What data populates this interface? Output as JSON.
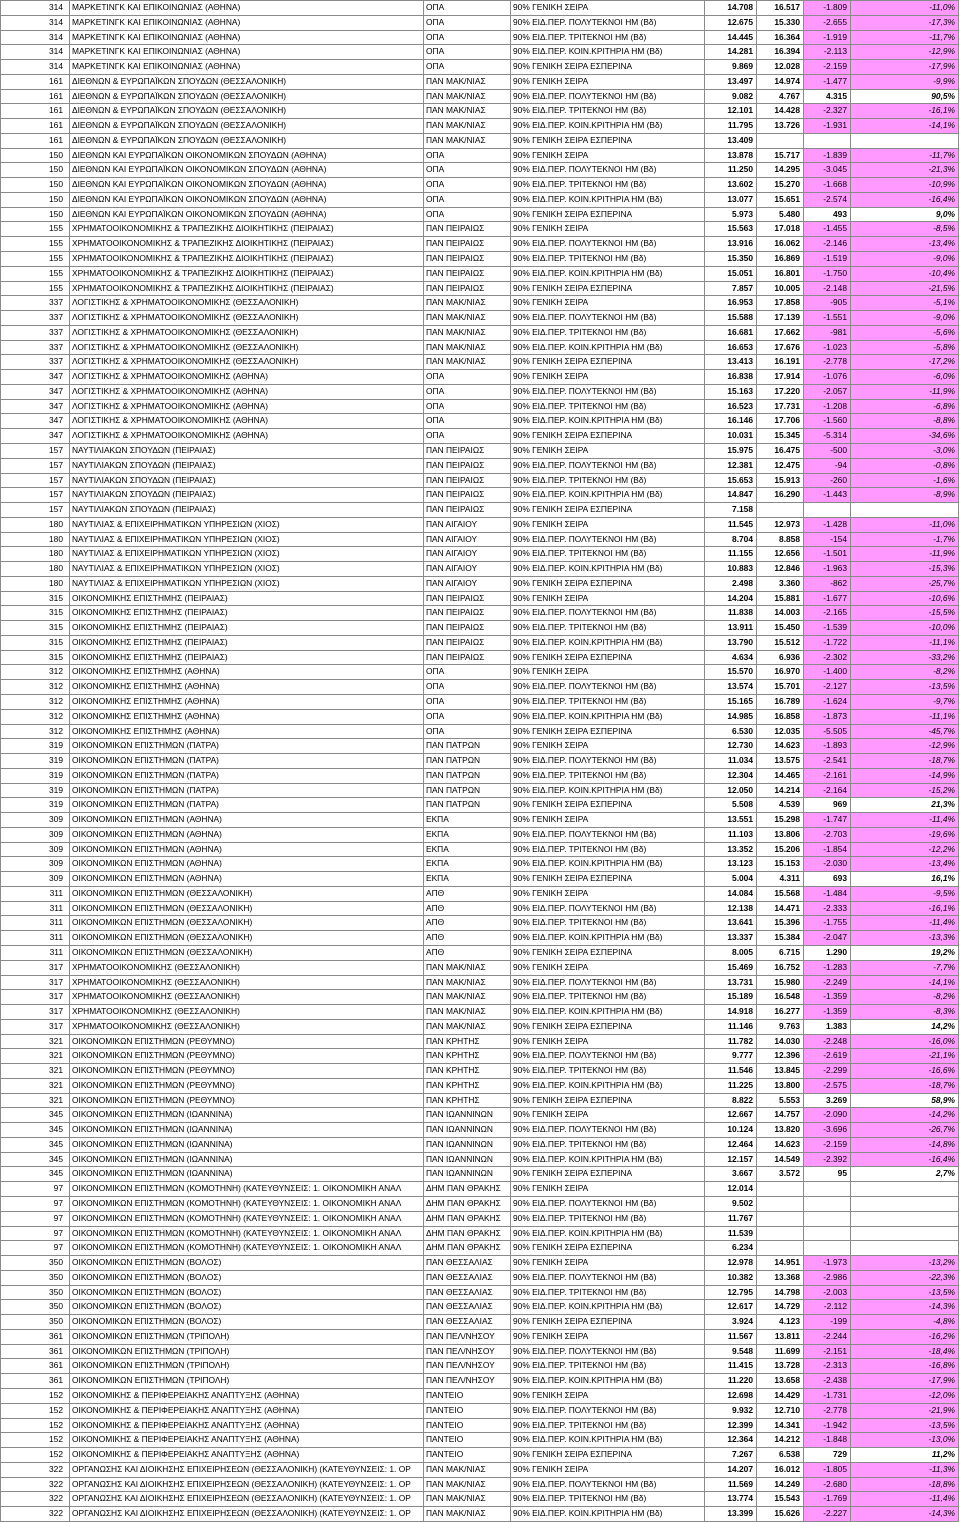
{
  "rows": [
    [
      "314",
      "ΜΑΡΚΕΤΙΝΓΚ ΚΑΙ ΕΠΙΚΟΙΝΩΝΙΑΣ (ΑΘΗΝΑ)",
      "ΟΠΑ",
      "90% ΓΕΝΙΚΗ ΣΕΙΡΑ",
      "14.708",
      "16.517",
      "-1.809",
      "-11,0%"
    ],
    [
      "314",
      "ΜΑΡΚΕΤΙΝΓΚ ΚΑΙ ΕΠΙΚΟΙΝΩΝΙΑΣ (ΑΘΗΝΑ)",
      "ΟΠΑ",
      "90% ΕΙΔ.ΠΕΡ. ΠΟΛΥΤΕΚΝΟΙ ΗΜ (Βδ)",
      "12.675",
      "15.330",
      "-2.655",
      "-17,3%"
    ],
    [
      "314",
      "ΜΑΡΚΕΤΙΝΓΚ ΚΑΙ ΕΠΙΚΟΙΝΩΝΙΑΣ (ΑΘΗΝΑ)",
      "ΟΠΑ",
      "90% ΕΙΔ.ΠΕΡ. ΤΡΙΤΕΚΝΟΙ ΗΜ (Βδ)",
      "14.445",
      "16.364",
      "-1.919",
      "-11,7%"
    ],
    [
      "314",
      "ΜΑΡΚΕΤΙΝΓΚ ΚΑΙ ΕΠΙΚΟΙΝΩΝΙΑΣ (ΑΘΗΝΑ)",
      "ΟΠΑ",
      "90% ΕΙΔ.ΠΕΡ. ΚΟΙΝ.ΚΡΙΤΗΡΙΑ ΗΜ (Βδ)",
      "14.281",
      "16.394",
      "-2.113",
      "-12,9%"
    ],
    [
      "314",
      "ΜΑΡΚΕΤΙΝΓΚ ΚΑΙ ΕΠΙΚΟΙΝΩΝΙΑΣ (ΑΘΗΝΑ)",
      "ΟΠΑ",
      "90% ΓΕΝΙΚΗ ΣΕΙΡΑ ΕΣΠΕΡΙΝΑ",
      "9.869",
      "12.028",
      "-2.159",
      "-17,9%"
    ],
    [
      "161",
      "ΔΙΕΘΝΩΝ & ΕΥΡΩΠΑΪΚΩΝ ΣΠΟΥΔΩΝ (ΘΕΣΣΑΛΟΝΙΚΗ)",
      "ΠΑΝ ΜΑΚ/ΝΙΑΣ",
      "90% ΓΕΝΙΚΗ ΣΕΙΡΑ",
      "13.497",
      "14.974",
      "-1.477",
      "-9,9%"
    ],
    [
      "161",
      "ΔΙΕΘΝΩΝ & ΕΥΡΩΠΑΪΚΩΝ ΣΠΟΥΔΩΝ (ΘΕΣΣΑΛΟΝΙΚΗ)",
      "ΠΑΝ ΜΑΚ/ΝΙΑΣ",
      "90% ΕΙΔ.ΠΕΡ. ΠΟΛΥΤΕΚΝΟΙ ΗΜ (Βδ)",
      "9.082",
      "4.767",
      "4.315",
      "90,5%"
    ],
    [
      "161",
      "ΔΙΕΘΝΩΝ & ΕΥΡΩΠΑΪΚΩΝ ΣΠΟΥΔΩΝ (ΘΕΣΣΑΛΟΝΙΚΗ)",
      "ΠΑΝ ΜΑΚ/ΝΙΑΣ",
      "90% ΕΙΔ.ΠΕΡ. ΤΡΙΤΕΚΝΟΙ ΗΜ (Βδ)",
      "12.101",
      "14.428",
      "-2.327",
      "-16,1%"
    ],
    [
      "161",
      "ΔΙΕΘΝΩΝ & ΕΥΡΩΠΑΪΚΩΝ ΣΠΟΥΔΩΝ (ΘΕΣΣΑΛΟΝΙΚΗ)",
      "ΠΑΝ ΜΑΚ/ΝΙΑΣ",
      "90% ΕΙΔ.ΠΕΡ. ΚΟΙΝ.ΚΡΙΤΗΡΙΑ ΗΜ (Βδ)",
      "11.795",
      "13.726",
      "-1.931",
      "-14,1%"
    ],
    [
      "161",
      "ΔΙΕΘΝΩΝ & ΕΥΡΩΠΑΪΚΩΝ ΣΠΟΥΔΩΝ (ΘΕΣΣΑΛΟΝΙΚΗ)",
      "ΠΑΝ ΜΑΚ/ΝΙΑΣ",
      "90% ΓΕΝΙΚΗ ΣΕΙΡΑ ΕΣΠΕΡΙΝΑ",
      "13.409",
      "",
      "",
      ""
    ],
    [
      "150",
      "ΔΙΕΘΝΩΝ ΚΑΙ ΕΥΡΩΠΑΪΚΩΝ ΟΙΚΟΝΟΜΙΚΩΝ ΣΠΟΥΔΩΝ (ΑΘΗΝΑ)",
      "ΟΠΑ",
      "90% ΓΕΝΙΚΗ ΣΕΙΡΑ",
      "13.878",
      "15.717",
      "-1.839",
      "-11,7%"
    ],
    [
      "150",
      "ΔΙΕΘΝΩΝ ΚΑΙ ΕΥΡΩΠΑΪΚΩΝ ΟΙΚΟΝΟΜΙΚΩΝ ΣΠΟΥΔΩΝ (ΑΘΗΝΑ)",
      "ΟΠΑ",
      "90% ΕΙΔ.ΠΕΡ. ΠΟΛΥΤΕΚΝΟΙ ΗΜ (Βδ)",
      "11.250",
      "14.295",
      "-3.045",
      "-21,3%"
    ],
    [
      "150",
      "ΔΙΕΘΝΩΝ ΚΑΙ ΕΥΡΩΠΑΪΚΩΝ ΟΙΚΟΝΟΜΙΚΩΝ ΣΠΟΥΔΩΝ (ΑΘΗΝΑ)",
      "ΟΠΑ",
      "90% ΕΙΔ.ΠΕΡ. ΤΡΙΤΕΚΝΟΙ ΗΜ (Βδ)",
      "13.602",
      "15.270",
      "-1.668",
      "-10,9%"
    ],
    [
      "150",
      "ΔΙΕΘΝΩΝ ΚΑΙ ΕΥΡΩΠΑΪΚΩΝ ΟΙΚΟΝΟΜΙΚΩΝ ΣΠΟΥΔΩΝ (ΑΘΗΝΑ)",
      "ΟΠΑ",
      "90% ΕΙΔ.ΠΕΡ. ΚΟΙΝ.ΚΡΙΤΗΡΙΑ ΗΜ (Βδ)",
      "13.077",
      "15.651",
      "-2.574",
      "-16,4%"
    ],
    [
      "150",
      "ΔΙΕΘΝΩΝ ΚΑΙ ΕΥΡΩΠΑΪΚΩΝ ΟΙΚΟΝΟΜΙΚΩΝ ΣΠΟΥΔΩΝ (ΑΘΗΝΑ)",
      "ΟΠΑ",
      "90% ΓΕΝΙΚΗ ΣΕΙΡΑ ΕΣΠΕΡΙΝΑ",
      "5.973",
      "5.480",
      "493",
      "9,0%"
    ],
    [
      "155",
      "ΧΡΗΜΑΤΟΟΙΚΟΝΟΜΙΚΗΣ & ΤΡΑΠΕΖΙΚΗΣ ΔΙΟΙΚΗΤΙΚΗΣ (ΠΕΙΡΑΙΑΣ)",
      "ΠΑΝ ΠΕΙΡΑΙΩΣ",
      "90% ΓΕΝΙΚΗ ΣΕΙΡΑ",
      "15.563",
      "17.018",
      "-1.455",
      "-8,5%"
    ],
    [
      "155",
      "ΧΡΗΜΑΤΟΟΙΚΟΝΟΜΙΚΗΣ & ΤΡΑΠΕΖΙΚΗΣ ΔΙΟΙΚΗΤΙΚΗΣ (ΠΕΙΡΑΙΑΣ)",
      "ΠΑΝ ΠΕΙΡΑΙΩΣ",
      "90% ΕΙΔ.ΠΕΡ. ΠΟΛΥΤΕΚΝΟΙ ΗΜ (Βδ)",
      "13.916",
      "16.062",
      "-2.146",
      "-13,4%"
    ],
    [
      "155",
      "ΧΡΗΜΑΤΟΟΙΚΟΝΟΜΙΚΗΣ & ΤΡΑΠΕΖΙΚΗΣ ΔΙΟΙΚΗΤΙΚΗΣ (ΠΕΙΡΑΙΑΣ)",
      "ΠΑΝ ΠΕΙΡΑΙΩΣ",
      "90% ΕΙΔ.ΠΕΡ. ΤΡΙΤΕΚΝΟΙ ΗΜ (Βδ)",
      "15.350",
      "16.869",
      "-1.519",
      "-9,0%"
    ],
    [
      "155",
      "ΧΡΗΜΑΤΟΟΙΚΟΝΟΜΙΚΗΣ & ΤΡΑΠΕΖΙΚΗΣ ΔΙΟΙΚΗΤΙΚΗΣ (ΠΕΙΡΑΙΑΣ)",
      "ΠΑΝ ΠΕΙΡΑΙΩΣ",
      "90% ΕΙΔ.ΠΕΡ. ΚΟΙΝ.ΚΡΙΤΗΡΙΑ ΗΜ (Βδ)",
      "15.051",
      "16.801",
      "-1.750",
      "-10,4%"
    ],
    [
      "155",
      "ΧΡΗΜΑΤΟΟΙΚΟΝΟΜΙΚΗΣ & ΤΡΑΠΕΖΙΚΗΣ ΔΙΟΙΚΗΤΙΚΗΣ (ΠΕΙΡΑΙΑΣ)",
      "ΠΑΝ ΠΕΙΡΑΙΩΣ",
      "90% ΓΕΝΙΚΗ ΣΕΙΡΑ ΕΣΠΕΡΙΝΑ",
      "7.857",
      "10.005",
      "-2.148",
      "-21,5%"
    ],
    [
      "337",
      "ΛΟΓΙΣΤΙΚΗΣ & ΧΡΗΜΑΤΟΟΙΚΟΝΟΜΙΚΗΣ (ΘΕΣΣΑΛΟΝΙΚΗ)",
      "ΠΑΝ ΜΑΚ/ΝΙΑΣ",
      "90% ΓΕΝΙΚΗ ΣΕΙΡΑ",
      "16.953",
      "17.858",
      "-905",
      "-5,1%"
    ],
    [
      "337",
      "ΛΟΓΙΣΤΙΚΗΣ & ΧΡΗΜΑΤΟΟΙΚΟΝΟΜΙΚΗΣ (ΘΕΣΣΑΛΟΝΙΚΗ)",
      "ΠΑΝ ΜΑΚ/ΝΙΑΣ",
      "90% ΕΙΔ.ΠΕΡ. ΠΟΛΥΤΕΚΝΟΙ ΗΜ (Βδ)",
      "15.588",
      "17.139",
      "-1.551",
      "-9,0%"
    ],
    [
      "337",
      "ΛΟΓΙΣΤΙΚΗΣ & ΧΡΗΜΑΤΟΟΙΚΟΝΟΜΙΚΗΣ (ΘΕΣΣΑΛΟΝΙΚΗ)",
      "ΠΑΝ ΜΑΚ/ΝΙΑΣ",
      "90% ΕΙΔ.ΠΕΡ. ΤΡΙΤΕΚΝΟΙ ΗΜ (Βδ)",
      "16.681",
      "17.662",
      "-981",
      "-5,6%"
    ],
    [
      "337",
      "ΛΟΓΙΣΤΙΚΗΣ & ΧΡΗΜΑΤΟΟΙΚΟΝΟΜΙΚΗΣ (ΘΕΣΣΑΛΟΝΙΚΗ)",
      "ΠΑΝ ΜΑΚ/ΝΙΑΣ",
      "90% ΕΙΔ.ΠΕΡ. ΚΟΙΝ.ΚΡΙΤΗΡΙΑ ΗΜ (Βδ)",
      "16.653",
      "17.676",
      "-1.023",
      "-5,8%"
    ],
    [
      "337",
      "ΛΟΓΙΣΤΙΚΗΣ & ΧΡΗΜΑΤΟΟΙΚΟΝΟΜΙΚΗΣ (ΘΕΣΣΑΛΟΝΙΚΗ)",
      "ΠΑΝ ΜΑΚ/ΝΙΑΣ",
      "90% ΓΕΝΙΚΗ ΣΕΙΡΑ ΕΣΠΕΡΙΝΑ",
      "13.413",
      "16.191",
      "-2.778",
      "-17,2%"
    ],
    [
      "347",
      "ΛΟΓΙΣΤΙΚΗΣ & ΧΡΗΜΑΤΟΟΙΚΟΝΟΜΙΚΗΣ (ΑΘΗΝΑ)",
      "ΟΠΑ",
      "90% ΓΕΝΙΚΗ ΣΕΙΡΑ",
      "16.838",
      "17.914",
      "-1.076",
      "-6,0%"
    ],
    [
      "347",
      "ΛΟΓΙΣΤΙΚΗΣ & ΧΡΗΜΑΤΟΟΙΚΟΝΟΜΙΚΗΣ (ΑΘΗΝΑ)",
      "ΟΠΑ",
      "90% ΕΙΔ.ΠΕΡ. ΠΟΛΥΤΕΚΝΟΙ ΗΜ (Βδ)",
      "15.163",
      "17.220",
      "-2.057",
      "-11,9%"
    ],
    [
      "347",
      "ΛΟΓΙΣΤΙΚΗΣ & ΧΡΗΜΑΤΟΟΙΚΟΝΟΜΙΚΗΣ (ΑΘΗΝΑ)",
      "ΟΠΑ",
      "90% ΕΙΔ.ΠΕΡ. ΤΡΙΤΕΚΝΟΙ ΗΜ (Βδ)",
      "16.523",
      "17.731",
      "-1.208",
      "-6,8%"
    ],
    [
      "347",
      "ΛΟΓΙΣΤΙΚΗΣ & ΧΡΗΜΑΤΟΟΙΚΟΝΟΜΙΚΗΣ (ΑΘΗΝΑ)",
      "ΟΠΑ",
      "90% ΕΙΔ.ΠΕΡ. ΚΟΙΝ.ΚΡΙΤΗΡΙΑ ΗΜ (Βδ)",
      "16.146",
      "17.706",
      "-1.560",
      "-8,8%"
    ],
    [
      "347",
      "ΛΟΓΙΣΤΙΚΗΣ & ΧΡΗΜΑΤΟΟΙΚΟΝΟΜΙΚΗΣ (ΑΘΗΝΑ)",
      "ΟΠΑ",
      "90% ΓΕΝΙΚΗ ΣΕΙΡΑ ΕΣΠΕΡΙΝΑ",
      "10.031",
      "15.345",
      "-5.314",
      "-34,6%"
    ],
    [
      "157",
      "ΝΑΥΤΙΛΙΑΚΩΝ ΣΠΟΥΔΩΝ (ΠΕΙΡΑΙΑΣ)",
      "ΠΑΝ ΠΕΙΡΑΙΩΣ",
      "90% ΓΕΝΙΚΗ ΣΕΙΡΑ",
      "15.975",
      "16.475",
      "-500",
      "-3,0%"
    ],
    [
      "157",
      "ΝΑΥΤΙΛΙΑΚΩΝ ΣΠΟΥΔΩΝ (ΠΕΙΡΑΙΑΣ)",
      "ΠΑΝ ΠΕΙΡΑΙΩΣ",
      "90% ΕΙΔ.ΠΕΡ. ΠΟΛΥΤΕΚΝΟΙ ΗΜ (Βδ)",
      "12.381",
      "12.475",
      "-94",
      "-0,8%"
    ],
    [
      "157",
      "ΝΑΥΤΙΛΙΑΚΩΝ ΣΠΟΥΔΩΝ (ΠΕΙΡΑΙΑΣ)",
      "ΠΑΝ ΠΕΙΡΑΙΩΣ",
      "90% ΕΙΔ.ΠΕΡ. ΤΡΙΤΕΚΝΟΙ ΗΜ (Βδ)",
      "15.653",
      "15.913",
      "-260",
      "-1,6%"
    ],
    [
      "157",
      "ΝΑΥΤΙΛΙΑΚΩΝ ΣΠΟΥΔΩΝ (ΠΕΙΡΑΙΑΣ)",
      "ΠΑΝ ΠΕΙΡΑΙΩΣ",
      "90% ΕΙΔ.ΠΕΡ. ΚΟΙΝ.ΚΡΙΤΗΡΙΑ ΗΜ (Βδ)",
      "14.847",
      "16.290",
      "-1.443",
      "-8,9%"
    ],
    [
      "157",
      "ΝΑΥΤΙΛΙΑΚΩΝ ΣΠΟΥΔΩΝ (ΠΕΙΡΑΙΑΣ)",
      "ΠΑΝ ΠΕΙΡΑΙΩΣ",
      "90% ΓΕΝΙΚΗ ΣΕΙΡΑ ΕΣΠΕΡΙΝΑ",
      "7.158",
      "",
      "",
      ""
    ],
    [
      "180",
      "ΝΑΥΤΙΛΙΑΣ & ΕΠΙΧΕΙΡΗΜΑΤΙΚΩΝ ΥΠΗΡΕΣΙΩΝ (ΧΙΟΣ)",
      "ΠΑΝ ΑΙΓΑΙΟΥ",
      "90% ΓΕΝΙΚΗ ΣΕΙΡΑ",
      "11.545",
      "12.973",
      "-1.428",
      "-11,0%"
    ],
    [
      "180",
      "ΝΑΥΤΙΛΙΑΣ & ΕΠΙΧΕΙΡΗΜΑΤΙΚΩΝ ΥΠΗΡΕΣΙΩΝ (ΧΙΟΣ)",
      "ΠΑΝ ΑΙΓΑΙΟΥ",
      "90% ΕΙΔ.ΠΕΡ. ΠΟΛΥΤΕΚΝΟΙ ΗΜ (Βδ)",
      "8.704",
      "8.858",
      "-154",
      "-1,7%"
    ],
    [
      "180",
      "ΝΑΥΤΙΛΙΑΣ & ΕΠΙΧΕΙΡΗΜΑΤΙΚΩΝ ΥΠΗΡΕΣΙΩΝ (ΧΙΟΣ)",
      "ΠΑΝ ΑΙΓΑΙΟΥ",
      "90% ΕΙΔ.ΠΕΡ. ΤΡΙΤΕΚΝΟΙ ΗΜ (Βδ)",
      "11.155",
      "12.656",
      "-1.501",
      "-11,9%"
    ],
    [
      "180",
      "ΝΑΥΤΙΛΙΑΣ & ΕΠΙΧΕΙΡΗΜΑΤΙΚΩΝ ΥΠΗΡΕΣΙΩΝ (ΧΙΟΣ)",
      "ΠΑΝ ΑΙΓΑΙΟΥ",
      "90% ΕΙΔ.ΠΕΡ. ΚΟΙΝ.ΚΡΙΤΗΡΙΑ ΗΜ (Βδ)",
      "10.883",
      "12.846",
      "-1.963",
      "-15,3%"
    ],
    [
      "180",
      "ΝΑΥΤΙΛΙΑΣ & ΕΠΙΧΕΙΡΗΜΑΤΙΚΩΝ ΥΠΗΡΕΣΙΩΝ (ΧΙΟΣ)",
      "ΠΑΝ ΑΙΓΑΙΟΥ",
      "90% ΓΕΝΙΚΗ ΣΕΙΡΑ ΕΣΠΕΡΙΝΑ",
      "2.498",
      "3.360",
      "-862",
      "-25,7%"
    ],
    [
      "315",
      "ΟΙΚΟΝΟΜΙΚΗΣ ΕΠΙΣΤΗΜΗΣ (ΠΕΙΡΑΙΑΣ)",
      "ΠΑΝ ΠΕΙΡΑΙΩΣ",
      "90% ΓΕΝΙΚΗ ΣΕΙΡΑ",
      "14.204",
      "15.881",
      "-1.677",
      "-10,6%"
    ],
    [
      "315",
      "ΟΙΚΟΝΟΜΙΚΗΣ ΕΠΙΣΤΗΜΗΣ (ΠΕΙΡΑΙΑΣ)",
      "ΠΑΝ ΠΕΙΡΑΙΩΣ",
      "90% ΕΙΔ.ΠΕΡ. ΠΟΛΥΤΕΚΝΟΙ ΗΜ (Βδ)",
      "11.838",
      "14.003",
      "-2.165",
      "-15,5%"
    ],
    [
      "315",
      "ΟΙΚΟΝΟΜΙΚΗΣ ΕΠΙΣΤΗΜΗΣ (ΠΕΙΡΑΙΑΣ)",
      "ΠΑΝ ΠΕΙΡΑΙΩΣ",
      "90% ΕΙΔ.ΠΕΡ. ΤΡΙΤΕΚΝΟΙ ΗΜ (Βδ)",
      "13.911",
      "15.450",
      "-1.539",
      "-10,0%"
    ],
    [
      "315",
      "ΟΙΚΟΝΟΜΙΚΗΣ ΕΠΙΣΤΗΜΗΣ (ΠΕΙΡΑΙΑΣ)",
      "ΠΑΝ ΠΕΙΡΑΙΩΣ",
      "90% ΕΙΔ.ΠΕΡ. ΚΟΙΝ.ΚΡΙΤΗΡΙΑ ΗΜ (Βδ)",
      "13.790",
      "15.512",
      "-1.722",
      "-11,1%"
    ],
    [
      "315",
      "ΟΙΚΟΝΟΜΙΚΗΣ ΕΠΙΣΤΗΜΗΣ (ΠΕΙΡΑΙΑΣ)",
      "ΠΑΝ ΠΕΙΡΑΙΩΣ",
      "90% ΓΕΝΙΚΗ ΣΕΙΡΑ ΕΣΠΕΡΙΝΑ",
      "4.634",
      "6.936",
      "-2.302",
      "-33,2%"
    ],
    [
      "312",
      "ΟΙΚΟΝΟΜΙΚΗΣ ΕΠΙΣΤΗΜΗΣ (ΑΘΗΝΑ)",
      "ΟΠΑ",
      "90% ΓΕΝΙΚΗ ΣΕΙΡΑ",
      "15.570",
      "16.970",
      "-1.400",
      "-8,2%"
    ],
    [
      "312",
      "ΟΙΚΟΝΟΜΙΚΗΣ ΕΠΙΣΤΗΜΗΣ (ΑΘΗΝΑ)",
      "ΟΠΑ",
      "90% ΕΙΔ.ΠΕΡ. ΠΟΛΥΤΕΚΝΟΙ ΗΜ (Βδ)",
      "13.574",
      "15.701",
      "-2.127",
      "-13,5%"
    ],
    [
      "312",
      "ΟΙΚΟΝΟΜΙΚΗΣ ΕΠΙΣΤΗΜΗΣ (ΑΘΗΝΑ)",
      "ΟΠΑ",
      "90% ΕΙΔ.ΠΕΡ. ΤΡΙΤΕΚΝΟΙ ΗΜ (Βδ)",
      "15.165",
      "16.789",
      "-1.624",
      "-9,7%"
    ],
    [
      "312",
      "ΟΙΚΟΝΟΜΙΚΗΣ ΕΠΙΣΤΗΜΗΣ (ΑΘΗΝΑ)",
      "ΟΠΑ",
      "90% ΕΙΔ.ΠΕΡ. ΚΟΙΝ.ΚΡΙΤΗΡΙΑ ΗΜ (Βδ)",
      "14.985",
      "16.858",
      "-1.873",
      "-11,1%"
    ],
    [
      "312",
      "ΟΙΚΟΝΟΜΙΚΗΣ ΕΠΙΣΤΗΜΗΣ (ΑΘΗΝΑ)",
      "ΟΠΑ",
      "90% ΓΕΝΙΚΗ ΣΕΙΡΑ ΕΣΠΕΡΙΝΑ",
      "6.530",
      "12.035",
      "-5.505",
      "-45,7%"
    ],
    [
      "319",
      "ΟΙΚΟΝΟΜΙΚΩΝ ΕΠΙΣΤΗΜΩΝ (ΠΑΤΡΑ)",
      "ΠΑΝ ΠΑΤΡΩΝ",
      "90% ΓΕΝΙΚΗ ΣΕΙΡΑ",
      "12.730",
      "14.623",
      "-1.893",
      "-12,9%"
    ],
    [
      "319",
      "ΟΙΚΟΝΟΜΙΚΩΝ ΕΠΙΣΤΗΜΩΝ (ΠΑΤΡΑ)",
      "ΠΑΝ ΠΑΤΡΩΝ",
      "90% ΕΙΔ.ΠΕΡ. ΠΟΛΥΤΕΚΝΟΙ ΗΜ (Βδ)",
      "11.034",
      "13.575",
      "-2.541",
      "-18,7%"
    ],
    [
      "319",
      "ΟΙΚΟΝΟΜΙΚΩΝ ΕΠΙΣΤΗΜΩΝ (ΠΑΤΡΑ)",
      "ΠΑΝ ΠΑΤΡΩΝ",
      "90% ΕΙΔ.ΠΕΡ. ΤΡΙΤΕΚΝΟΙ ΗΜ (Βδ)",
      "12.304",
      "14.465",
      "-2.161",
      "-14,9%"
    ],
    [
      "319",
      "ΟΙΚΟΝΟΜΙΚΩΝ ΕΠΙΣΤΗΜΩΝ (ΠΑΤΡΑ)",
      "ΠΑΝ ΠΑΤΡΩΝ",
      "90% ΕΙΔ.ΠΕΡ. ΚΟΙΝ.ΚΡΙΤΗΡΙΑ ΗΜ (Βδ)",
      "12.050",
      "14.214",
      "-2.164",
      "-15,2%"
    ],
    [
      "319",
      "ΟΙΚΟΝΟΜΙΚΩΝ ΕΠΙΣΤΗΜΩΝ (ΠΑΤΡΑ)",
      "ΠΑΝ ΠΑΤΡΩΝ",
      "90% ΓΕΝΙΚΗ ΣΕΙΡΑ ΕΣΠΕΡΙΝΑ",
      "5.508",
      "4.539",
      "969",
      "21,3%"
    ],
    [
      "309",
      "ΟΙΚΟΝΟΜΙΚΩΝ ΕΠΙΣΤΗΜΩΝ (ΑΘΗΝΑ)",
      "ΕΚΠΑ",
      "90% ΓΕΝΙΚΗ ΣΕΙΡΑ",
      "13.551",
      "15.298",
      "-1.747",
      "-11,4%"
    ],
    [
      "309",
      "ΟΙΚΟΝΟΜΙΚΩΝ ΕΠΙΣΤΗΜΩΝ (ΑΘΗΝΑ)",
      "ΕΚΠΑ",
      "90% ΕΙΔ.ΠΕΡ. ΠΟΛΥΤΕΚΝΟΙ ΗΜ (Βδ)",
      "11.103",
      "13.806",
      "-2.703",
      "-19,6%"
    ],
    [
      "309",
      "ΟΙΚΟΝΟΜΙΚΩΝ ΕΠΙΣΤΗΜΩΝ (ΑΘΗΝΑ)",
      "ΕΚΠΑ",
      "90% ΕΙΔ.ΠΕΡ. ΤΡΙΤΕΚΝΟΙ ΗΜ (Βδ)",
      "13.352",
      "15.206",
      "-1.854",
      "-12,2%"
    ],
    [
      "309",
      "ΟΙΚΟΝΟΜΙΚΩΝ ΕΠΙΣΤΗΜΩΝ (ΑΘΗΝΑ)",
      "ΕΚΠΑ",
      "90% ΕΙΔ.ΠΕΡ. ΚΟΙΝ.ΚΡΙΤΗΡΙΑ ΗΜ (Βδ)",
      "13.123",
      "15.153",
      "-2.030",
      "-13,4%"
    ],
    [
      "309",
      "ΟΙΚΟΝΟΜΙΚΩΝ ΕΠΙΣΤΗΜΩΝ (ΑΘΗΝΑ)",
      "ΕΚΠΑ",
      "90% ΓΕΝΙΚΗ ΣΕΙΡΑ ΕΣΠΕΡΙΝΑ",
      "5.004",
      "4.311",
      "693",
      "16,1%"
    ],
    [
      "311",
      "ΟΙΚΟΝΟΜΙΚΩΝ ΕΠΙΣΤΗΜΩΝ (ΘΕΣΣΑΛΟΝΙΚΗ)",
      "ΑΠΘ",
      "90% ΓΕΝΙΚΗ ΣΕΙΡΑ",
      "14.084",
      "15.568",
      "-1.484",
      "-9,5%"
    ],
    [
      "311",
      "ΟΙΚΟΝΟΜΙΚΩΝ ΕΠΙΣΤΗΜΩΝ (ΘΕΣΣΑΛΟΝΙΚΗ)",
      "ΑΠΘ",
      "90% ΕΙΔ.ΠΕΡ. ΠΟΛΥΤΕΚΝΟΙ ΗΜ (Βδ)",
      "12.138",
      "14.471",
      "-2.333",
      "-16,1%"
    ],
    [
      "311",
      "ΟΙΚΟΝΟΜΙΚΩΝ ΕΠΙΣΤΗΜΩΝ (ΘΕΣΣΑΛΟΝΙΚΗ)",
      "ΑΠΘ",
      "90% ΕΙΔ.ΠΕΡ. ΤΡΙΤΕΚΝΟΙ ΗΜ (Βδ)",
      "13.641",
      "15.396",
      "-1.755",
      "-11,4%"
    ],
    [
      "311",
      "ΟΙΚΟΝΟΜΙΚΩΝ ΕΠΙΣΤΗΜΩΝ (ΘΕΣΣΑΛΟΝΙΚΗ)",
      "ΑΠΘ",
      "90% ΕΙΔ.ΠΕΡ. ΚΟΙΝ.ΚΡΙΤΗΡΙΑ ΗΜ (Βδ)",
      "13.337",
      "15.384",
      "-2.047",
      "-13,3%"
    ],
    [
      "311",
      "ΟΙΚΟΝΟΜΙΚΩΝ ΕΠΙΣΤΗΜΩΝ (ΘΕΣΣΑΛΟΝΙΚΗ)",
      "ΑΠΘ",
      "90% ΓΕΝΙΚΗ ΣΕΙΡΑ ΕΣΠΕΡΙΝΑ",
      "8.005",
      "6.715",
      "1.290",
      "19,2%"
    ],
    [
      "317",
      "ΧΡΗΜΑΤΟΟΙΚΟΝΟΜΙΚΗΣ (ΘΕΣΣΑΛΟΝΙΚΗ)",
      "ΠΑΝ ΜΑΚ/ΝΙΑΣ",
      "90% ΓΕΝΙΚΗ ΣΕΙΡΑ",
      "15.469",
      "16.752",
      "-1.283",
      "-7,7%"
    ],
    [
      "317",
      "ΧΡΗΜΑΤΟΟΙΚΟΝΟΜΙΚΗΣ (ΘΕΣΣΑΛΟΝΙΚΗ)",
      "ΠΑΝ ΜΑΚ/ΝΙΑΣ",
      "90% ΕΙΔ.ΠΕΡ. ΠΟΛΥΤΕΚΝΟΙ ΗΜ (Βδ)",
      "13.731",
      "15.980",
      "-2.249",
      "-14,1%"
    ],
    [
      "317",
      "ΧΡΗΜΑΤΟΟΙΚΟΝΟΜΙΚΗΣ (ΘΕΣΣΑΛΟΝΙΚΗ)",
      "ΠΑΝ ΜΑΚ/ΝΙΑΣ",
      "90% ΕΙΔ.ΠΕΡ. ΤΡΙΤΕΚΝΟΙ ΗΜ (Βδ)",
      "15.189",
      "16.548",
      "-1.359",
      "-8,2%"
    ],
    [
      "317",
      "ΧΡΗΜΑΤΟΟΙΚΟΝΟΜΙΚΗΣ (ΘΕΣΣΑΛΟΝΙΚΗ)",
      "ΠΑΝ ΜΑΚ/ΝΙΑΣ",
      "90% ΕΙΔ.ΠΕΡ. ΚΟΙΝ.ΚΡΙΤΗΡΙΑ ΗΜ (Βδ)",
      "14.918",
      "16.277",
      "-1.359",
      "-8,3%"
    ],
    [
      "317",
      "ΧΡΗΜΑΤΟΟΙΚΟΝΟΜΙΚΗΣ (ΘΕΣΣΑΛΟΝΙΚΗ)",
      "ΠΑΝ ΜΑΚ/ΝΙΑΣ",
      "90% ΓΕΝΙΚΗ ΣΕΙΡΑ ΕΣΠΕΡΙΝΑ",
      "11.146",
      "9.763",
      "1.383",
      "14,2%"
    ],
    [
      "321",
      "ΟΙΚΟΝΟΜΙΚΩΝ ΕΠΙΣΤΗΜΩΝ (ΡΕΘΥΜΝΟ)",
      "ΠΑΝ ΚΡΗΤΗΣ",
      "90% ΓΕΝΙΚΗ ΣΕΙΡΑ",
      "11.782",
      "14.030",
      "-2.248",
      "-16,0%"
    ],
    [
      "321",
      "ΟΙΚΟΝΟΜΙΚΩΝ ΕΠΙΣΤΗΜΩΝ (ΡΕΘΥΜΝΟ)",
      "ΠΑΝ ΚΡΗΤΗΣ",
      "90% ΕΙΔ.ΠΕΡ. ΠΟΛΥΤΕΚΝΟΙ ΗΜ (Βδ)",
      "9.777",
      "12.396",
      "-2.619",
      "-21,1%"
    ],
    [
      "321",
      "ΟΙΚΟΝΟΜΙΚΩΝ ΕΠΙΣΤΗΜΩΝ (ΡΕΘΥΜΝΟ)",
      "ΠΑΝ ΚΡΗΤΗΣ",
      "90% ΕΙΔ.ΠΕΡ. ΤΡΙΤΕΚΝΟΙ ΗΜ (Βδ)",
      "11.546",
      "13.845",
      "-2.299",
      "-16,6%"
    ],
    [
      "321",
      "ΟΙΚΟΝΟΜΙΚΩΝ ΕΠΙΣΤΗΜΩΝ (ΡΕΘΥΜΝΟ)",
      "ΠΑΝ ΚΡΗΤΗΣ",
      "90% ΕΙΔ.ΠΕΡ. ΚΟΙΝ.ΚΡΙΤΗΡΙΑ ΗΜ (Βδ)",
      "11.225",
      "13.800",
      "-2.575",
      "-18,7%"
    ],
    [
      "321",
      "ΟΙΚΟΝΟΜΙΚΩΝ ΕΠΙΣΤΗΜΩΝ (ΡΕΘΥΜΝΟ)",
      "ΠΑΝ ΚΡΗΤΗΣ",
      "90% ΓΕΝΙΚΗ ΣΕΙΡΑ ΕΣΠΕΡΙΝΑ",
      "8.822",
      "5.553",
      "3.269",
      "58,9%"
    ],
    [
      "345",
      "ΟΙΚΟΝΟΜΙΚΩΝ ΕΠΙΣΤΗΜΩΝ (ΙΩΑΝΝΙΝΑ)",
      "ΠΑΝ ΙΩΑΝΝΙΝΩΝ",
      "90% ΓΕΝΙΚΗ ΣΕΙΡΑ",
      "12.667",
      "14.757",
      "-2.090",
      "-14,2%"
    ],
    [
      "345",
      "ΟΙΚΟΝΟΜΙΚΩΝ ΕΠΙΣΤΗΜΩΝ (ΙΩΑΝΝΙΝΑ)",
      "ΠΑΝ ΙΩΑΝΝΙΝΩΝ",
      "90% ΕΙΔ.ΠΕΡ. ΠΟΛΥΤΕΚΝΟΙ ΗΜ (Βδ)",
      "10.124",
      "13.820",
      "-3.696",
      "-26,7%"
    ],
    [
      "345",
      "ΟΙΚΟΝΟΜΙΚΩΝ ΕΠΙΣΤΗΜΩΝ (ΙΩΑΝΝΙΝΑ)",
      "ΠΑΝ ΙΩΑΝΝΙΝΩΝ",
      "90% ΕΙΔ.ΠΕΡ. ΤΡΙΤΕΚΝΟΙ ΗΜ (Βδ)",
      "12.464",
      "14.623",
      "-2.159",
      "-14,8%"
    ],
    [
      "345",
      "ΟΙΚΟΝΟΜΙΚΩΝ ΕΠΙΣΤΗΜΩΝ (ΙΩΑΝΝΙΝΑ)",
      "ΠΑΝ ΙΩΑΝΝΙΝΩΝ",
      "90% ΕΙΔ.ΠΕΡ. ΚΟΙΝ.ΚΡΙΤΗΡΙΑ ΗΜ (Βδ)",
      "12.157",
      "14.549",
      "-2.392",
      "-16,4%"
    ],
    [
      "345",
      "ΟΙΚΟΝΟΜΙΚΩΝ ΕΠΙΣΤΗΜΩΝ (ΙΩΑΝΝΙΝΑ)",
      "ΠΑΝ ΙΩΑΝΝΙΝΩΝ",
      "90% ΓΕΝΙΚΗ ΣΕΙΡΑ ΕΣΠΕΡΙΝΑ",
      "3.667",
      "3.572",
      "95",
      "2,7%"
    ],
    [
      "97",
      "ΟΙΚΟΝΟΜΙΚΩΝ ΕΠΙΣΤΗΜΩΝ (ΚΟΜΟΤΗΝΗ) (ΚΑΤΕΥΘΥΝΣΕΙΣ: 1. ΟΙΚΟΝΟΜΙΚΗ ΑΝΑΛ",
      "ΔΗΜ ΠΑΝ ΘΡΑΚΗΣ",
      "90% ΓΕΝΙΚΗ ΣΕΙΡΑ",
      "12.014",
      "",
      "",
      ""
    ],
    [
      "97",
      "ΟΙΚΟΝΟΜΙΚΩΝ ΕΠΙΣΤΗΜΩΝ (ΚΟΜΟΤΗΝΗ) (ΚΑΤΕΥΘΥΝΣΕΙΣ: 1. ΟΙΚΟΝΟΜΙΚΗ ΑΝΑΛ",
      "ΔΗΜ ΠΑΝ ΘΡΑΚΗΣ",
      "90% ΕΙΔ.ΠΕΡ. ΠΟΛΥΤΕΚΝΟΙ ΗΜ (Βδ)",
      "9.502",
      "",
      "",
      ""
    ],
    [
      "97",
      "ΟΙΚΟΝΟΜΙΚΩΝ ΕΠΙΣΤΗΜΩΝ (ΚΟΜΟΤΗΝΗ) (ΚΑΤΕΥΘΥΝΣΕΙΣ: 1. ΟΙΚΟΝΟΜΙΚΗ ΑΝΑΛ",
      "ΔΗΜ ΠΑΝ ΘΡΑΚΗΣ",
      "90% ΕΙΔ.ΠΕΡ. ΤΡΙΤΕΚΝΟΙ ΗΜ (Βδ)",
      "11.767",
      "",
      "",
      ""
    ],
    [
      "97",
      "ΟΙΚΟΝΟΜΙΚΩΝ ΕΠΙΣΤΗΜΩΝ (ΚΟΜΟΤΗΝΗ) (ΚΑΤΕΥΘΥΝΣΕΙΣ: 1. ΟΙΚΟΝΟΜΙΚΗ ΑΝΑΛ",
      "ΔΗΜ ΠΑΝ ΘΡΑΚΗΣ",
      "90% ΕΙΔ.ΠΕΡ. ΚΟΙΝ.ΚΡΙΤΗΡΙΑ ΗΜ (Βδ)",
      "11.539",
      "",
      "",
      ""
    ],
    [
      "97",
      "ΟΙΚΟΝΟΜΙΚΩΝ ΕΠΙΣΤΗΜΩΝ (ΚΟΜΟΤΗΝΗ) (ΚΑΤΕΥΘΥΝΣΕΙΣ: 1. ΟΙΚΟΝΟΜΙΚΗ ΑΝΑΛ",
      "ΔΗΜ ΠΑΝ ΘΡΑΚΗΣ",
      "90% ΓΕΝΙΚΗ ΣΕΙΡΑ ΕΣΠΕΡΙΝΑ",
      "6.234",
      "",
      "",
      ""
    ],
    [
      "350",
      "ΟΙΚΟΝΟΜΙΚΩΝ ΕΠΙΣΤΗΜΩΝ (ΒΟΛΟΣ)",
      "ΠΑΝ ΘΕΣΣΑΛΙΑΣ",
      "90% ΓΕΝΙΚΗ ΣΕΙΡΑ",
      "12.978",
      "14.951",
      "-1.973",
      "-13,2%"
    ],
    [
      "350",
      "ΟΙΚΟΝΟΜΙΚΩΝ ΕΠΙΣΤΗΜΩΝ (ΒΟΛΟΣ)",
      "ΠΑΝ ΘΕΣΣΑΛΙΑΣ",
      "90% ΕΙΔ.ΠΕΡ. ΠΟΛΥΤΕΚΝΟΙ ΗΜ (Βδ)",
      "10.382",
      "13.368",
      "-2.986",
      "-22,3%"
    ],
    [
      "350",
      "ΟΙΚΟΝΟΜΙΚΩΝ ΕΠΙΣΤΗΜΩΝ (ΒΟΛΟΣ)",
      "ΠΑΝ ΘΕΣΣΑΛΙΑΣ",
      "90% ΕΙΔ.ΠΕΡ. ΤΡΙΤΕΚΝΟΙ ΗΜ (Βδ)",
      "12.795",
      "14.798",
      "-2.003",
      "-13,5%"
    ],
    [
      "350",
      "ΟΙΚΟΝΟΜΙΚΩΝ ΕΠΙΣΤΗΜΩΝ (ΒΟΛΟΣ)",
      "ΠΑΝ ΘΕΣΣΑΛΙΑΣ",
      "90% ΕΙΔ.ΠΕΡ. ΚΟΙΝ.ΚΡΙΤΗΡΙΑ ΗΜ (Βδ)",
      "12.617",
      "14.729",
      "-2.112",
      "-14,3%"
    ],
    [
      "350",
      "ΟΙΚΟΝΟΜΙΚΩΝ ΕΠΙΣΤΗΜΩΝ (ΒΟΛΟΣ)",
      "ΠΑΝ ΘΕΣΣΑΛΙΑΣ",
      "90% ΓΕΝΙΚΗ ΣΕΙΡΑ ΕΣΠΕΡΙΝΑ",
      "3.924",
      "4.123",
      "-199",
      "-4,8%"
    ],
    [
      "361",
      "ΟΙΚΟΝΟΜΙΚΩΝ ΕΠΙΣΤΗΜΩΝ (ΤΡΙΠΟΛΗ)",
      "ΠΑΝ ΠΕΛ/ΝΗΣΟΥ",
      "90% ΓΕΝΙΚΗ ΣΕΙΡΑ",
      "11.567",
      "13.811",
      "-2.244",
      "-16,2%"
    ],
    [
      "361",
      "ΟΙΚΟΝΟΜΙΚΩΝ ΕΠΙΣΤΗΜΩΝ (ΤΡΙΠΟΛΗ)",
      "ΠΑΝ ΠΕΛ/ΝΗΣΟΥ",
      "90% ΕΙΔ.ΠΕΡ. ΠΟΛΥΤΕΚΝΟΙ ΗΜ (Βδ)",
      "9.548",
      "11.699",
      "-2.151",
      "-18,4%"
    ],
    [
      "361",
      "ΟΙΚΟΝΟΜΙΚΩΝ ΕΠΙΣΤΗΜΩΝ (ΤΡΙΠΟΛΗ)",
      "ΠΑΝ ΠΕΛ/ΝΗΣΟΥ",
      "90% ΕΙΔ.ΠΕΡ. ΤΡΙΤΕΚΝΟΙ ΗΜ (Βδ)",
      "11.415",
      "13.728",
      "-2.313",
      "-16,8%"
    ],
    [
      "361",
      "ΟΙΚΟΝΟΜΙΚΩΝ ΕΠΙΣΤΗΜΩΝ (ΤΡΙΠΟΛΗ)",
      "ΠΑΝ ΠΕΛ/ΝΗΣΟΥ",
      "90% ΕΙΔ.ΠΕΡ. ΚΟΙΝ.ΚΡΙΤΗΡΙΑ ΗΜ (Βδ)",
      "11.220",
      "13.658",
      "-2.438",
      "-17,9%"
    ],
    [
      "152",
      "ΟΙΚΟΝΟΜΙΚΗΣ & ΠΕΡΙΦΕΡΕΙΑΚΗΣ ΑΝΑΠΤΥΞΗΣ (ΑΘΗΝΑ)",
      "ΠΑΝΤΕΙΟ",
      "90% ΓΕΝΙΚΗ ΣΕΙΡΑ",
      "12.698",
      "14.429",
      "-1.731",
      "-12,0%"
    ],
    [
      "152",
      "ΟΙΚΟΝΟΜΙΚΗΣ & ΠΕΡΙΦΕΡΕΙΑΚΗΣ ΑΝΑΠΤΥΞΗΣ (ΑΘΗΝΑ)",
      "ΠΑΝΤΕΙΟ",
      "90% ΕΙΔ.ΠΕΡ. ΠΟΛΥΤΕΚΝΟΙ ΗΜ (Βδ)",
      "9.932",
      "12.710",
      "-2.778",
      "-21,9%"
    ],
    [
      "152",
      "ΟΙΚΟΝΟΜΙΚΗΣ & ΠΕΡΙΦΕΡΕΙΑΚΗΣ ΑΝΑΠΤΥΞΗΣ (ΑΘΗΝΑ)",
      "ΠΑΝΤΕΙΟ",
      "90% ΕΙΔ.ΠΕΡ. ΤΡΙΤΕΚΝΟΙ ΗΜ (Βδ)",
      "12.399",
      "14.341",
      "-1.942",
      "-13,5%"
    ],
    [
      "152",
      "ΟΙΚΟΝΟΜΙΚΗΣ & ΠΕΡΙΦΕΡΕΙΑΚΗΣ ΑΝΑΠΤΥΞΗΣ (ΑΘΗΝΑ)",
      "ΠΑΝΤΕΙΟ",
      "90% ΕΙΔ.ΠΕΡ. ΚΟΙΝ.ΚΡΙΤΗΡΙΑ ΗΜ (Βδ)",
      "12.364",
      "14.212",
      "-1.848",
      "-13,0%"
    ],
    [
      "152",
      "ΟΙΚΟΝΟΜΙΚΗΣ & ΠΕΡΙΦΕΡΕΙΑΚΗΣ ΑΝΑΠΤΥΞΗΣ (ΑΘΗΝΑ)",
      "ΠΑΝΤΕΙΟ",
      "90% ΓΕΝΙΚΗ ΣΕΙΡΑ ΕΣΠΕΡΙΝΑ",
      "7.267",
      "6.538",
      "729",
      "11,2%"
    ],
    [
      "322",
      "ΟΡΓΑΝΩΣΗΣ ΚΑΙ ΔΙΟΙΚΗΣΗΣ ΕΠΙΧΕΙΡΗΣΕΩΝ (ΘΕΣΣΑΛΟΝΙΚΗ) (ΚΑΤΕΥΘΥΝΣΕΙΣ: 1. ΟΡ",
      "ΠΑΝ ΜΑΚ/ΝΙΑΣ",
      "90% ΓΕΝΙΚΗ ΣΕΙΡΑ",
      "14.207",
      "16.012",
      "-1.805",
      "-11,3%"
    ],
    [
      "322",
      "ΟΡΓΑΝΩΣΗΣ ΚΑΙ ΔΙΟΙΚΗΣΗΣ ΕΠΙΧΕΙΡΗΣΕΩΝ (ΘΕΣΣΑΛΟΝΙΚΗ) (ΚΑΤΕΥΘΥΝΣΕΙΣ: 1. ΟΡ",
      "ΠΑΝ ΜΑΚ/ΝΙΑΣ",
      "90% ΕΙΔ.ΠΕΡ. ΠΟΛΥΤΕΚΝΟΙ ΗΜ (Βδ)",
      "11.569",
      "14.249",
      "-2.680",
      "-18,8%"
    ],
    [
      "322",
      "ΟΡΓΑΝΩΣΗΣ ΚΑΙ ΔΙΟΙΚΗΣΗΣ ΕΠΙΧΕΙΡΗΣΕΩΝ (ΘΕΣΣΑΛΟΝΙΚΗ) (ΚΑΤΕΥΘΥΝΣΕΙΣ: 1. ΟΡ",
      "ΠΑΝ ΜΑΚ/ΝΙΑΣ",
      "90% ΕΙΔ.ΠΕΡ. ΤΡΙΤΕΚΝΟΙ ΗΜ (Βδ)",
      "13.774",
      "15.543",
      "-1.769",
      "-11,4%"
    ],
    [
      "322",
      "ΟΡΓΑΝΩΣΗΣ ΚΑΙ ΔΙΟΙΚΗΣΗΣ ΕΠΙΧΕΙΡΗΣΕΩΝ (ΘΕΣΣΑΛΟΝΙΚΗ) (ΚΑΤΕΥΘΥΝΣΕΙΣ: 1. ΟΡ",
      "ΠΑΝ ΜΑΚ/ΝΙΑΣ",
      "90% ΕΙΔ.ΠΕΡ. ΚΟΙΝ.ΚΡΙΤΗΡΙΑ ΗΜ (Βδ)",
      "13.399",
      "15.626",
      "-2.227",
      "-14,3%"
    ]
  ],
  "colors": {
    "negative_fill": "#ff99ff",
    "grid_line": "#8a8a8a"
  }
}
